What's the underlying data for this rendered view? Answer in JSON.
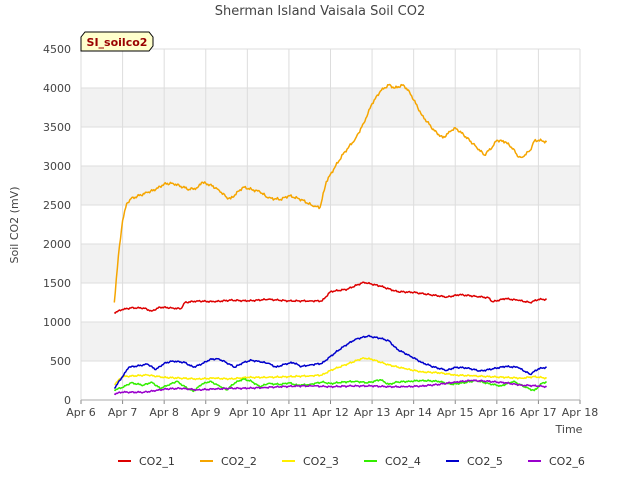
{
  "chart_data": {
    "type": "line",
    "title": "Sherman Island Vaisala Soil CO2",
    "xlabel": "Time",
    "ylabel": "Soil CO2 (mV)",
    "badge": "SI_soilco2",
    "x_unit": "days since Apr 6 00:00",
    "xlim": [
      0,
      12
    ],
    "ylim": [
      0,
      4500
    ],
    "xticks": [
      {
        "v": 0,
        "label": "Apr 6"
      },
      {
        "v": 1,
        "label": "Apr 7"
      },
      {
        "v": 2,
        "label": "Apr 8"
      },
      {
        "v": 3,
        "label": "Apr 9"
      },
      {
        "v": 4,
        "label": "Apr 10"
      },
      {
        "v": 5,
        "label": "Apr 11"
      },
      {
        "v": 6,
        "label": "Apr 12"
      },
      {
        "v": 7,
        "label": "Apr 13"
      },
      {
        "v": 8,
        "label": "Apr 14"
      },
      {
        "v": 9,
        "label": "Apr 15"
      },
      {
        "v": 10,
        "label": "Apr 16"
      },
      {
        "v": 11,
        "label": "Apr 17"
      },
      {
        "v": 12,
        "label": "Apr 18"
      }
    ],
    "yticks": [
      0,
      500,
      1000,
      1500,
      2000,
      2500,
      3000,
      3500,
      4000,
      4500
    ],
    "grid": true,
    "legend_position": "bottom",
    "series": [
      {
        "name": "CO2_1",
        "color": "#dd0000",
        "points": [
          [
            0.8,
            1120
          ],
          [
            1.0,
            1160
          ],
          [
            1.2,
            1180
          ],
          [
            1.5,
            1180
          ],
          [
            1.7,
            1140
          ],
          [
            1.9,
            1190
          ],
          [
            2.2,
            1180
          ],
          [
            2.4,
            1170
          ],
          [
            2.5,
            1250
          ],
          [
            2.8,
            1270
          ],
          [
            3.2,
            1260
          ],
          [
            3.6,
            1280
          ],
          [
            4.0,
            1270
          ],
          [
            4.5,
            1290
          ],
          [
            5.0,
            1270
          ],
          [
            5.5,
            1270
          ],
          [
            5.8,
            1270
          ],
          [
            6.0,
            1390
          ],
          [
            6.4,
            1420
          ],
          [
            6.8,
            1510
          ],
          [
            7.2,
            1460
          ],
          [
            7.6,
            1390
          ],
          [
            8.0,
            1380
          ],
          [
            8.4,
            1350
          ],
          [
            8.8,
            1320
          ],
          [
            9.1,
            1350
          ],
          [
            9.5,
            1330
          ],
          [
            9.8,
            1310
          ],
          [
            9.9,
            1260
          ],
          [
            10.2,
            1300
          ],
          [
            10.5,
            1280
          ],
          [
            10.8,
            1250
          ],
          [
            11.0,
            1290
          ],
          [
            11.2,
            1290
          ]
        ]
      },
      {
        "name": "CO2_2",
        "color": "#f5a500",
        "points": [
          [
            0.8,
            1250
          ],
          [
            0.9,
            1850
          ],
          [
            1.0,
            2300
          ],
          [
            1.1,
            2520
          ],
          [
            1.2,
            2580
          ],
          [
            1.4,
            2620
          ],
          [
            1.6,
            2660
          ],
          [
            1.8,
            2700
          ],
          [
            2.0,
            2770
          ],
          [
            2.2,
            2780
          ],
          [
            2.4,
            2740
          ],
          [
            2.6,
            2700
          ],
          [
            2.8,
            2720
          ],
          [
            2.9,
            2790
          ],
          [
            3.1,
            2760
          ],
          [
            3.3,
            2700
          ],
          [
            3.5,
            2600
          ],
          [
            3.6,
            2580
          ],
          [
            3.8,
            2680
          ],
          [
            3.9,
            2730
          ],
          [
            4.1,
            2700
          ],
          [
            4.3,
            2670
          ],
          [
            4.5,
            2590
          ],
          [
            4.8,
            2570
          ],
          [
            5.0,
            2620
          ],
          [
            5.3,
            2570
          ],
          [
            5.6,
            2480
          ],
          [
            5.75,
            2470
          ],
          [
            5.9,
            2800
          ],
          [
            6.1,
            2980
          ],
          [
            6.3,
            3150
          ],
          [
            6.6,
            3350
          ],
          [
            6.8,
            3550
          ],
          [
            7.0,
            3800
          ],
          [
            7.2,
            3960
          ],
          [
            7.4,
            4040
          ],
          [
            7.55,
            4000
          ],
          [
            7.75,
            4040
          ],
          [
            7.9,
            3950
          ],
          [
            8.2,
            3650
          ],
          [
            8.5,
            3450
          ],
          [
            8.7,
            3360
          ],
          [
            8.9,
            3450
          ],
          [
            9.0,
            3490
          ],
          [
            9.2,
            3400
          ],
          [
            9.5,
            3250
          ],
          [
            9.7,
            3140
          ],
          [
            9.9,
            3250
          ],
          [
            10.0,
            3330
          ],
          [
            10.2,
            3310
          ],
          [
            10.4,
            3220
          ],
          [
            10.5,
            3120
          ],
          [
            10.6,
            3110
          ],
          [
            10.8,
            3200
          ],
          [
            10.9,
            3320
          ],
          [
            11.0,
            3330
          ],
          [
            11.2,
            3310
          ]
        ]
      },
      {
        "name": "CO2_3",
        "color": "#ffee00",
        "points": [
          [
            0.8,
            200
          ],
          [
            1.0,
            300
          ],
          [
            1.3,
            310
          ],
          [
            1.6,
            320
          ],
          [
            2.0,
            290
          ],
          [
            2.4,
            280
          ],
          [
            2.8,
            270
          ],
          [
            3.2,
            280
          ],
          [
            3.6,
            270
          ],
          [
            4.0,
            290
          ],
          [
            4.5,
            290
          ],
          [
            5.0,
            300
          ],
          [
            5.5,
            310
          ],
          [
            5.8,
            320
          ],
          [
            6.0,
            380
          ],
          [
            6.4,
            460
          ],
          [
            6.8,
            540
          ],
          [
            7.0,
            520
          ],
          [
            7.4,
            450
          ],
          [
            7.8,
            400
          ],
          [
            8.2,
            360
          ],
          [
            8.6,
            350
          ],
          [
            9.0,
            320
          ],
          [
            9.4,
            310
          ],
          [
            9.8,
            300
          ],
          [
            10.2,
            290
          ],
          [
            10.6,
            280
          ],
          [
            10.9,
            300
          ],
          [
            11.2,
            280
          ]
        ]
      },
      {
        "name": "CO2_4",
        "color": "#33ee00",
        "points": [
          [
            0.8,
            130
          ],
          [
            1.0,
            160
          ],
          [
            1.2,
            220
          ],
          [
            1.5,
            190
          ],
          [
            1.7,
            230
          ],
          [
            1.9,
            150
          ],
          [
            2.1,
            190
          ],
          [
            2.3,
            240
          ],
          [
            2.5,
            170
          ],
          [
            2.7,
            110
          ],
          [
            2.9,
            200
          ],
          [
            3.1,
            240
          ],
          [
            3.3,
            190
          ],
          [
            3.5,
            130
          ],
          [
            3.7,
            220
          ],
          [
            3.9,
            270
          ],
          [
            4.1,
            240
          ],
          [
            4.3,
            170
          ],
          [
            4.5,
            210
          ],
          [
            4.8,
            200
          ],
          [
            5.0,
            220
          ],
          [
            5.2,
            190
          ],
          [
            5.5,
            200
          ],
          [
            5.8,
            230
          ],
          [
            6.0,
            210
          ],
          [
            6.3,
            230
          ],
          [
            6.6,
            240
          ],
          [
            6.9,
            220
          ],
          [
            7.2,
            260
          ],
          [
            7.4,
            200
          ],
          [
            7.6,
            230
          ],
          [
            7.9,
            240
          ],
          [
            8.2,
            250
          ],
          [
            8.6,
            240
          ],
          [
            8.9,
            200
          ],
          [
            9.2,
            220
          ],
          [
            9.5,
            250
          ],
          [
            9.8,
            210
          ],
          [
            10.1,
            180
          ],
          [
            10.4,
            240
          ],
          [
            10.7,
            160
          ],
          [
            10.9,
            120
          ],
          [
            11.1,
            220
          ],
          [
            11.2,
            230
          ]
        ]
      },
      {
        "name": "CO2_5",
        "color": "#0000cc",
        "points": [
          [
            0.8,
            150
          ],
          [
            1.0,
            300
          ],
          [
            1.15,
            420
          ],
          [
            1.4,
            440
          ],
          [
            1.6,
            460
          ],
          [
            1.8,
            390
          ],
          [
            2.0,
            470
          ],
          [
            2.2,
            500
          ],
          [
            2.5,
            480
          ],
          [
            2.7,
            420
          ],
          [
            2.9,
            460
          ],
          [
            3.1,
            520
          ],
          [
            3.3,
            530
          ],
          [
            3.5,
            480
          ],
          [
            3.7,
            420
          ],
          [
            3.9,
            480
          ],
          [
            4.1,
            510
          ],
          [
            4.3,
            490
          ],
          [
            4.5,
            470
          ],
          [
            4.7,
            420
          ],
          [
            4.9,
            460
          ],
          [
            5.1,
            480
          ],
          [
            5.3,
            430
          ],
          [
            5.5,
            450
          ],
          [
            5.8,
            470
          ],
          [
            6.0,
            560
          ],
          [
            6.3,
            680
          ],
          [
            6.6,
            780
          ],
          [
            6.9,
            820
          ],
          [
            7.2,
            790
          ],
          [
            7.4,
            760
          ],
          [
            7.6,
            650
          ],
          [
            7.9,
            570
          ],
          [
            8.2,
            480
          ],
          [
            8.5,
            420
          ],
          [
            8.8,
            380
          ],
          [
            9.0,
            420
          ],
          [
            9.3,
            410
          ],
          [
            9.6,
            370
          ],
          [
            9.9,
            400
          ],
          [
            10.2,
            430
          ],
          [
            10.5,
            420
          ],
          [
            10.8,
            330
          ],
          [
            11.0,
            400
          ],
          [
            11.2,
            420
          ]
        ]
      },
      {
        "name": "CO2_6",
        "color": "#9900cc",
        "points": [
          [
            0.8,
            80
          ],
          [
            1.0,
            100
          ],
          [
            1.5,
            100
          ],
          [
            1.8,
            120
          ],
          [
            2.0,
            140
          ],
          [
            2.4,
            150
          ],
          [
            2.8,
            130
          ],
          [
            3.2,
            140
          ],
          [
            3.6,
            150
          ],
          [
            4.0,
            150
          ],
          [
            4.4,
            160
          ],
          [
            4.8,
            170
          ],
          [
            5.2,
            180
          ],
          [
            5.6,
            180
          ],
          [
            6.0,
            170
          ],
          [
            6.5,
            180
          ],
          [
            7.0,
            180
          ],
          [
            7.4,
            170
          ],
          [
            7.8,
            170
          ],
          [
            8.2,
            180
          ],
          [
            8.6,
            200
          ],
          [
            9.0,
            230
          ],
          [
            9.4,
            250
          ],
          [
            9.8,
            240
          ],
          [
            10.2,
            220
          ],
          [
            10.6,
            190
          ],
          [
            11.0,
            180
          ],
          [
            11.2,
            170
          ]
        ]
      }
    ]
  }
}
